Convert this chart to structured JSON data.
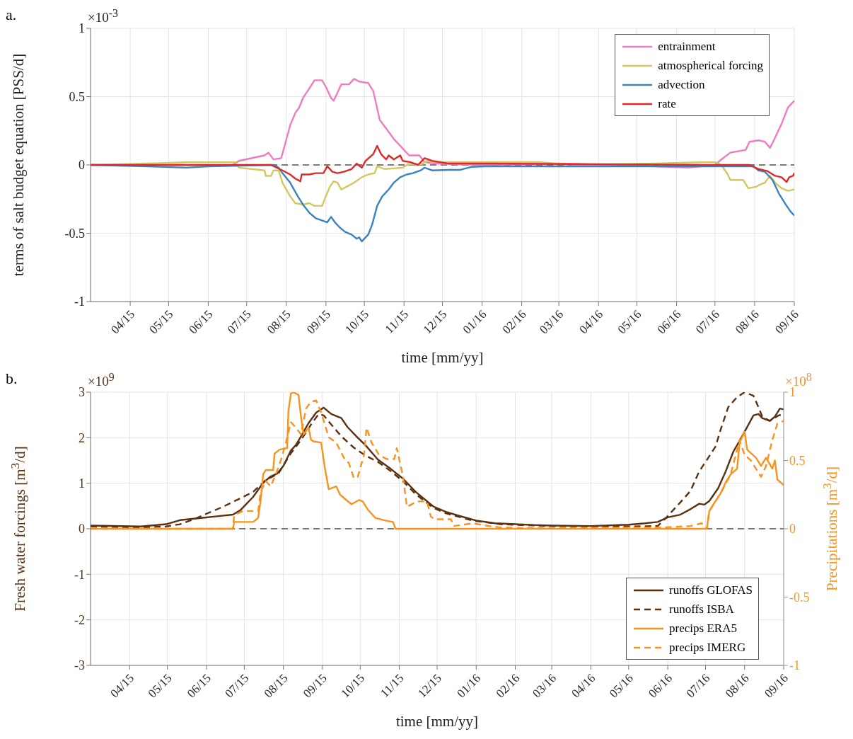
{
  "chart_data": [
    {
      "type": "line",
      "title": "a.",
      "xlabel": "time [mm/yy]",
      "ylabel": "terms of salt budget equation [PSS/d]",
      "annotations": [
        "×10$^{-3}$"
      ],
      "xlim": [
        "2015-03-01",
        "2016-09-01"
      ],
      "xticks": [
        {
          "value": "2015-04-01",
          "label": "04/15"
        },
        {
          "value": "2015-05-01",
          "label": "05/15"
        },
        {
          "value": "2015-06-01",
          "label": "06/15"
        },
        {
          "value": "2015-07-01",
          "label": "07/15"
        },
        {
          "value": "2015-08-01",
          "label": "08/15"
        },
        {
          "value": "2015-09-01",
          "label": "09/15"
        },
        {
          "value": "2015-10-01",
          "label": "10/15"
        },
        {
          "value": "2015-11-01",
          "label": "11/15"
        },
        {
          "value": "2015-12-01",
          "label": "12/15"
        },
        {
          "value": "2016-01-01",
          "label": "01/16"
        },
        {
          "value": "2016-02-01",
          "label": "02/16"
        },
        {
          "value": "2016-03-01",
          "label": "03/16"
        },
        {
          "value": "2016-04-01",
          "label": "04/16"
        },
        {
          "value": "2016-05-01",
          "label": "05/16"
        },
        {
          "value": "2016-06-01",
          "label": "06/16"
        },
        {
          "value": "2016-07-01",
          "label": "07/16"
        },
        {
          "value": "2016-08-01",
          "label": "08/16"
        },
        {
          "value": "2016-09-01",
          "label": "09/16"
        }
      ],
      "ylim": [
        -1,
        1
      ],
      "yticks": [
        -1,
        -0.5,
        0,
        0.5,
        1
      ],
      "grid": true,
      "legend": "top right",
      "ref_lines": [
        {
          "axis": "y",
          "value": 0,
          "color": "#555555",
          "line_style": "dashed"
        }
      ],
      "series": [
        {
          "name": "entrainment",
          "color": "#f07cc0",
          "line_style": "solid",
          "x": [
            "2015-03-01",
            "2015-06-20",
            "2015-06-25",
            "2015-07-15",
            "2015-07-18",
            "2015-07-22",
            "2015-07-28",
            "2015-07-31",
            "2015-08-04",
            "2015-08-08",
            "2015-08-11",
            "2015-08-14",
            "2015-08-19",
            "2015-08-23",
            "2015-08-29",
            "2015-09-01",
            "2015-09-05",
            "2015-09-07",
            "2015-09-10",
            "2015-09-13",
            "2015-09-19",
            "2015-09-23",
            "2015-09-27",
            "2015-10-04",
            "2015-10-08",
            "2015-10-13",
            "2015-10-17",
            "2015-10-24",
            "2015-10-31",
            "2015-11-05",
            "2015-11-13",
            "2015-11-17",
            "2015-11-26",
            "2016-01-03",
            "2016-03-01",
            "2016-05-15",
            "2016-06-10",
            "2016-07-01",
            "2016-07-06",
            "2016-07-13",
            "2016-07-25",
            "2016-07-28",
            "2016-08-04",
            "2016-08-09",
            "2016-08-13",
            "2016-08-16",
            "2016-08-22",
            "2016-08-27",
            "2016-09-01"
          ],
          "values": [
            0,
            0,
            0.03,
            0.07,
            0.09,
            0.04,
            0.05,
            0.15,
            0.29,
            0.38,
            0.42,
            0.49,
            0.56,
            0.62,
            0.62,
            0.57,
            0.49,
            0.47,
            0.53,
            0.59,
            0.59,
            0.63,
            0.61,
            0.6,
            0.54,
            0.33,
            0.28,
            0.19,
            0.12,
            0.07,
            0.07,
            0.02,
            0.01,
            0,
            0.01,
            -0.01,
            -0.02,
            0,
            0.04,
            0.09,
            0.11,
            0.17,
            0.18,
            0.17,
            0.125,
            0.18,
            0.3,
            0.42,
            0.47
          ]
        },
        {
          "name": "atmospherical forcing",
          "color": "#d4c760",
          "line_style": "solid",
          "x": [
            "2015-03-01",
            "2015-04-15",
            "2015-05-15",
            "2015-06-22",
            "2015-06-25",
            "2015-07-15",
            "2015-07-16",
            "2015-07-20",
            "2015-07-22",
            "2015-07-26",
            "2015-07-29",
            "2015-08-04",
            "2015-08-08",
            "2015-08-14",
            "2015-08-19",
            "2015-08-23",
            "2015-08-29",
            "2015-08-31",
            "2015-09-04",
            "2015-09-07",
            "2015-09-10",
            "2015-09-13",
            "2015-09-17",
            "2015-09-23",
            "2015-09-29",
            "2015-10-04",
            "2015-10-09",
            "2015-10-11",
            "2015-10-17",
            "2015-10-31",
            "2015-11-04",
            "2015-11-15",
            "2015-11-19",
            "2015-11-26",
            "2015-12-24",
            "2016-01-15",
            "2016-02-15",
            "2016-03-15",
            "2016-05-15",
            "2016-06-20",
            "2016-07-01",
            "2016-07-06",
            "2016-07-11",
            "2016-07-13",
            "2016-07-23",
            "2016-07-27",
            "2016-08-02",
            "2016-08-06",
            "2016-08-09",
            "2016-08-13",
            "2016-08-18",
            "2016-08-22",
            "2016-08-27",
            "2016-09-01"
          ],
          "values": [
            0,
            0.01,
            0.02,
            0.02,
            -0.02,
            -0.04,
            -0.08,
            -0.08,
            -0.04,
            -0.04,
            -0.13,
            -0.23,
            -0.28,
            -0.29,
            -0.28,
            -0.3,
            -0.3,
            -0.25,
            -0.16,
            -0.12,
            -0.13,
            -0.18,
            -0.16,
            -0.13,
            -0.09,
            -0.07,
            -0.06,
            -0.01,
            -0.03,
            -0.02,
            0.005,
            0.005,
            0.03,
            0.02,
            0.02,
            0.02,
            0.02,
            0,
            0.01,
            0.02,
            0.02,
            0,
            -0.07,
            -0.11,
            -0.11,
            -0.17,
            -0.16,
            -0.14,
            -0.13,
            -0.08,
            -0.14,
            -0.17,
            -0.19,
            -0.18
          ]
        },
        {
          "name": "advection",
          "color": "#3a83c1",
          "line_style": "solid",
          "x": [
            "2015-03-01",
            "2015-04-15",
            "2015-05-15",
            "2015-06-01",
            "2015-07-22",
            "2015-07-26",
            "2015-07-29",
            "2015-08-04",
            "2015-08-10",
            "2015-08-14",
            "2015-08-19",
            "2015-08-24",
            "2015-08-30",
            "2015-09-02",
            "2015-09-05",
            "2015-09-08",
            "2015-09-12",
            "2015-09-16",
            "2015-09-21",
            "2015-09-25",
            "2015-09-27",
            "2015-09-29",
            "2015-10-04",
            "2015-10-07",
            "2015-10-11",
            "2015-10-15",
            "2015-10-20",
            "2015-10-24",
            "2015-10-29",
            "2015-11-03",
            "2015-11-08",
            "2015-11-14",
            "2015-11-17",
            "2015-11-23",
            "2015-12-06",
            "2015-12-15",
            "2015-12-24",
            "2016-01-03",
            "2016-03-01",
            "2016-05-01",
            "2016-07-01",
            "2016-07-31",
            "2016-08-04",
            "2016-08-09",
            "2016-08-15",
            "2016-08-20",
            "2016-08-26",
            "2016-08-29",
            "2016-09-01"
          ],
          "values": [
            0,
            -0.01,
            -0.02,
            -0.01,
            0,
            -0.02,
            -0.06,
            -0.13,
            -0.23,
            -0.29,
            -0.35,
            -0.39,
            -0.41,
            -0.42,
            -0.38,
            -0.42,
            -0.46,
            -0.49,
            -0.51,
            -0.54,
            -0.53,
            -0.56,
            -0.51,
            -0.44,
            -0.3,
            -0.23,
            -0.18,
            -0.13,
            -0.09,
            -0.07,
            -0.06,
            -0.04,
            -0.02,
            -0.04,
            -0.036,
            -0.036,
            -0.014,
            -0.01,
            -0.01,
            -0.01,
            -0.01,
            -0.01,
            -0.04,
            -0.05,
            -0.11,
            -0.21,
            -0.3,
            -0.34,
            -0.37
          ]
        },
        {
          "name": "rate",
          "color": "#dc2a2a",
          "line_style": "solid",
          "x": [
            "2015-03-01",
            "2015-07-20",
            "2015-07-29",
            "2015-08-04",
            "2015-08-08",
            "2015-08-12",
            "2015-08-13",
            "2015-08-19",
            "2015-08-24",
            "2015-08-30",
            "2015-09-02",
            "2015-09-06",
            "2015-09-10",
            "2015-09-15",
            "2015-09-21",
            "2015-09-25",
            "2015-09-29",
            "2015-10-02",
            "2015-10-08",
            "2015-10-11",
            "2015-10-14",
            "2015-10-18",
            "2015-10-20",
            "2015-10-24",
            "2015-10-29",
            "2015-10-31",
            "2015-11-06",
            "2015-11-12",
            "2015-11-17",
            "2015-11-23",
            "2015-12-06",
            "2016-01-03",
            "2016-07-01",
            "2016-07-28",
            "2016-08-04",
            "2016-08-11",
            "2016-08-17",
            "2016-08-22",
            "2016-08-26",
            "2016-08-28",
            "2016-08-31",
            "2016-09-01"
          ],
          "values": [
            0,
            0,
            -0.04,
            -0.07,
            -0.1,
            -0.12,
            -0.07,
            -0.07,
            -0.06,
            -0.06,
            -0.01,
            -0.05,
            -0.06,
            -0.05,
            -0.03,
            0.01,
            -0.02,
            0.03,
            0.08,
            0.14,
            0.08,
            0.04,
            0.07,
            0.04,
            0.07,
            0.03,
            0.02,
            0,
            0.05,
            0.03,
            0.01,
            0.01,
            0,
            0,
            -0.03,
            -0.045,
            -0.08,
            -0.09,
            -0.125,
            -0.09,
            -0.08,
            -0.06
          ]
        }
      ]
    },
    {
      "type": "line",
      "title": "b.",
      "xlabel": "time [mm/yy]",
      "ylabel": "Fresh water forcings [m$^{3}$/d]",
      "y2label": "Precipitations [m$^{3}$/d]",
      "annotations": [
        "×10$^{9}$",
        "×10$^{8}$"
      ],
      "xlim": [
        "2015-03-01",
        "2016-09-01"
      ],
      "xticks": [
        {
          "value": "2015-04-01",
          "label": "04/15"
        },
        {
          "value": "2015-05-01",
          "label": "05/15"
        },
        {
          "value": "2015-06-01",
          "label": "06/15"
        },
        {
          "value": "2015-07-01",
          "label": "07/15"
        },
        {
          "value": "2015-08-01",
          "label": "08/15"
        },
        {
          "value": "2015-09-01",
          "label": "09/15"
        },
        {
          "value": "2015-10-01",
          "label": "10/15"
        },
        {
          "value": "2015-11-01",
          "label": "11/15"
        },
        {
          "value": "2015-12-01",
          "label": "12/15"
        },
        {
          "value": "2016-01-01",
          "label": "01/16"
        },
        {
          "value": "2016-02-01",
          "label": "02/16"
        },
        {
          "value": "2016-03-01",
          "label": "03/16"
        },
        {
          "value": "2016-04-01",
          "label": "04/16"
        },
        {
          "value": "2016-05-01",
          "label": "05/16"
        },
        {
          "value": "2016-06-01",
          "label": "06/16"
        },
        {
          "value": "2016-07-01",
          "label": "07/16"
        },
        {
          "value": "2016-08-01",
          "label": "08/16"
        },
        {
          "value": "2016-09-01",
          "label": "09/16"
        }
      ],
      "ylim": [
        -3,
        3
      ],
      "yticks": [
        -3,
        -2,
        -1,
        0,
        1,
        2,
        3
      ],
      "y2lim": [
        -1,
        1
      ],
      "y2ticks": [
        -1,
        -0.5,
        0,
        0.5,
        1
      ],
      "grid": true,
      "legend": "bottom right",
      "ref_lines": [
        {
          "axis": "y",
          "value": 0,
          "color": "#555555",
          "line_style": "dashed"
        }
      ],
      "series": [
        {
          "name": "runoffs GLOFAS",
          "color": "#5a3010",
          "line_style": "solid",
          "axis": "y",
          "x": [
            "2015-03-01",
            "2015-04-10",
            "2015-04-30",
            "2015-05-11",
            "2015-05-29",
            "2015-06-08",
            "2015-06-22",
            "2015-06-28",
            "2015-07-08",
            "2015-07-16",
            "2015-07-22",
            "2015-07-27",
            "2015-08-01",
            "2015-08-07",
            "2015-08-11",
            "2015-08-15",
            "2015-08-21",
            "2015-08-27",
            "2015-09-02",
            "2015-09-08",
            "2015-09-16",
            "2015-09-21",
            "2015-09-29",
            "2015-10-05",
            "2015-10-15",
            "2015-10-25",
            "2015-11-04",
            "2015-11-14",
            "2015-11-28",
            "2015-12-08",
            "2015-12-19",
            "2016-01-01",
            "2016-01-16",
            "2016-02-01",
            "2016-02-18",
            "2016-03-01",
            "2016-04-01",
            "2016-05-01",
            "2016-05-14",
            "2016-05-24",
            "2016-06-01",
            "2016-06-11",
            "2016-06-19",
            "2016-06-26",
            "2016-06-30",
            "2016-07-04",
            "2016-07-11",
            "2016-07-17",
            "2016-07-23",
            "2016-07-30",
            "2016-08-08",
            "2016-08-12",
            "2016-08-15",
            "2016-08-21",
            "2016-08-25",
            "2016-08-29",
            "2016-09-01"
          ],
          "values": [
            0.07,
            0.05,
            0.1,
            0.19,
            0.24,
            0.27,
            0.31,
            0.41,
            0.7,
            1.01,
            1.15,
            1.21,
            1.38,
            1.72,
            1.84,
            2.03,
            2.32,
            2.55,
            2.66,
            2.52,
            2.43,
            2.23,
            2.0,
            1.84,
            1.52,
            1.32,
            1.1,
            0.81,
            0.49,
            0.37,
            0.28,
            0.18,
            0.12,
            0.1,
            0.08,
            0.07,
            0.06,
            0.09,
            0.12,
            0.15,
            0.25,
            0.31,
            0.43,
            0.55,
            0.53,
            0.61,
            0.89,
            1.26,
            1.69,
            2.03,
            2.49,
            2.52,
            2.43,
            2.37,
            2.46,
            2.64,
            2.62
          ]
        },
        {
          "name": "runoffs ISBA",
          "color": "#5a3010",
          "line_style": "dashed",
          "axis": "y",
          "x": [
            "2015-03-01",
            "2015-04-10",
            "2015-04-30",
            "2015-05-11",
            "2015-05-23",
            "2015-06-01",
            "2015-06-13",
            "2015-06-28",
            "2015-07-08",
            "2015-07-18",
            "2015-07-28",
            "2015-08-07",
            "2015-08-15",
            "2015-08-23",
            "2015-08-29",
            "2015-09-02",
            "2015-09-08",
            "2015-09-16",
            "2015-09-26",
            "2015-10-05",
            "2015-10-15",
            "2015-10-25",
            "2015-11-04",
            "2015-11-14",
            "2015-11-28",
            "2015-12-08",
            "2015-12-29",
            "2016-01-20",
            "2016-03-01",
            "2016-04-01",
            "2016-05-01",
            "2016-05-24",
            "2016-06-01",
            "2016-06-11",
            "2016-06-19",
            "2016-06-26",
            "2016-07-02",
            "2016-07-09",
            "2016-07-13",
            "2016-07-19",
            "2016-07-26",
            "2016-08-01",
            "2016-08-08",
            "2016-08-12",
            "2016-08-15",
            "2016-08-21",
            "2016-08-28",
            "2016-09-01"
          ],
          "values": [
            0.05,
            0.03,
            0.05,
            0.1,
            0.22,
            0.33,
            0.47,
            0.67,
            0.81,
            1.07,
            1.21,
            1.66,
            1.95,
            2.29,
            2.52,
            2.49,
            2.29,
            2.03,
            1.78,
            1.61,
            1.47,
            1.27,
            1.04,
            0.76,
            0.46,
            0.34,
            0.18,
            0.1,
            0.06,
            0.05,
            0.05,
            0.06,
            0.28,
            0.58,
            0.83,
            1.26,
            1.51,
            1.81,
            2.18,
            2.67,
            2.89,
            3.0,
            2.92,
            2.67,
            2.46,
            2.37,
            2.49,
            2.52
          ]
        },
        {
          "name": "precips ERA5",
          "color": "#f7931e",
          "line_style": "solid",
          "axis": "y2",
          "x": [
            "2015-03-01",
            "2015-06-22",
            "2015-06-23",
            "2015-07-08",
            "2015-07-12",
            "2015-07-14",
            "2015-07-16",
            "2015-07-18",
            "2015-07-24",
            "2015-07-25",
            "2015-07-29",
            "2015-08-04",
            "2015-08-05",
            "2015-08-07",
            "2015-08-09",
            "2015-08-13",
            "2015-08-15",
            "2015-08-17",
            "2015-08-21",
            "2015-08-23",
            "2015-08-25",
            "2015-08-31",
            "2015-09-03",
            "2015-09-06",
            "2015-09-12",
            "2015-09-15",
            "2015-09-20",
            "2015-09-24",
            "2015-09-30",
            "2015-10-03",
            "2015-10-07",
            "2015-10-13",
            "2015-10-21",
            "2015-10-27",
            "2015-10-29",
            "2016-07-02",
            "2016-07-04",
            "2016-07-08",
            "2016-07-13",
            "2016-07-17",
            "2016-07-21",
            "2016-07-26",
            "2016-07-28",
            "2016-08-01",
            "2016-08-03",
            "2016-08-10",
            "2016-08-14",
            "2016-08-18",
            "2016-08-23",
            "2016-08-25",
            "2016-08-27",
            "2016-09-01"
          ],
          "values": [
            0,
            0,
            0.05,
            0.05,
            0.08,
            0.21,
            0.4,
            0.43,
            0.43,
            0.55,
            0.58,
            0.59,
            0.86,
            0.99,
            1.0,
            0.98,
            0.82,
            0.69,
            0.74,
            0.65,
            0.64,
            0.63,
            0.44,
            0.29,
            0.31,
            0.25,
            0.21,
            0.18,
            0.21,
            0.2,
            0.14,
            0.08,
            0.06,
            0.05,
            0,
            0,
            0.13,
            0.19,
            0.26,
            0.34,
            0.4,
            0.44,
            0.63,
            0.71,
            0.58,
            0.52,
            0.46,
            0.52,
            0.44,
            0.5,
            0.36,
            0.32
          ]
        },
        {
          "name": "precips IMERG",
          "color": "#f7931e",
          "line_style": "dashed",
          "axis": "y2",
          "x": [
            "2015-03-01",
            "2015-06-22",
            "2015-06-23",
            "2015-06-30",
            "2015-07-12",
            "2015-07-14",
            "2015-07-18",
            "2015-07-22",
            "2015-07-26",
            "2015-07-30",
            "2015-08-03",
            "2015-08-07",
            "2015-08-11",
            "2015-08-15",
            "2015-08-19",
            "2015-08-23",
            "2015-08-27",
            "2015-08-31",
            "2015-09-06",
            "2015-09-12",
            "2015-09-18",
            "2015-09-22",
            "2015-09-26",
            "2015-09-29",
            "2015-10-04",
            "2015-10-06",
            "2015-10-10",
            "2015-10-16",
            "2015-10-22",
            "2015-10-28",
            "2015-10-30",
            "2015-11-04",
            "2015-11-07",
            "2015-11-15",
            "2015-11-23",
            "2015-11-26",
            "2015-11-29",
            "2015-12-12",
            "2015-12-14",
            "2015-12-29",
            "2016-01-11",
            "2016-01-20",
            "2016-02-11",
            "2016-05-29",
            "2016-06-19",
            "2016-06-28",
            "2016-07-02",
            "2016-07-04",
            "2016-07-13",
            "2016-07-21",
            "2016-07-28",
            "2016-08-01",
            "2016-08-06",
            "2016-08-10",
            "2016-08-14",
            "2016-08-18",
            "2016-08-23",
            "2016-08-27",
            "2016-09-01"
          ],
          "values": [
            0,
            0,
            0.1,
            0.13,
            0.13,
            0.27,
            0.35,
            0.31,
            0.4,
            0.5,
            0.63,
            0.78,
            0.74,
            0.69,
            0.88,
            0.93,
            0.94,
            0.85,
            0.67,
            0.63,
            0.52,
            0.48,
            0.37,
            0.38,
            0.54,
            0.74,
            0.63,
            0.54,
            0.51,
            0.51,
            0.59,
            0.38,
            0.16,
            0.2,
            0.2,
            0.09,
            0.07,
            0.07,
            0.02,
            0.04,
            0.02,
            0.01,
            0.005,
            0.01,
            0.02,
            0.04,
            0,
            0.13,
            0.26,
            0.4,
            0.65,
            0.54,
            0.5,
            0.44,
            0.38,
            0.46,
            0.65,
            0.77,
            0.79
          ]
        }
      ]
    }
  ]
}
